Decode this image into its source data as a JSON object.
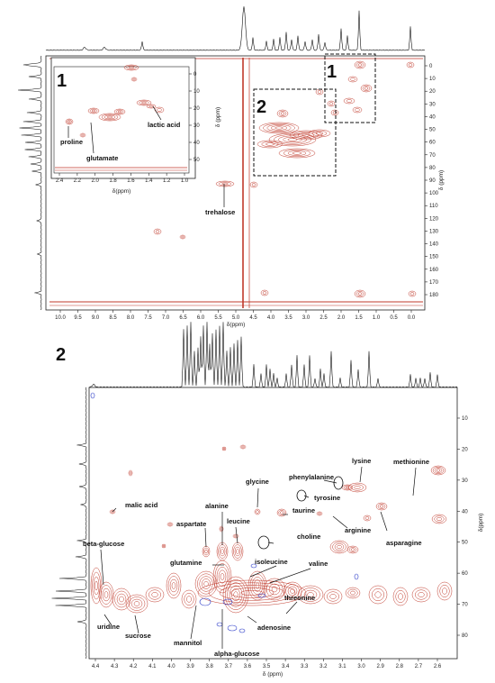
{
  "panel_top": {
    "x_axis_label": "δ(ppm)",
    "y_axis_label": "δ (ppm)",
    "x_ticks": [
      "10.0",
      "9.5",
      "9.0",
      "8.5",
      "8.0",
      "7.5",
      "7.0",
      "6.5",
      "6.0",
      "5.5",
      "5.0",
      "4.5",
      "4.0",
      "3.5",
      "3.0",
      "2.5",
      "2.0",
      "1.5",
      "1.0",
      "0.5",
      "0.0"
    ],
    "y_ticks": [
      "0",
      "10",
      "20",
      "30",
      "40",
      "50",
      "60",
      "70",
      "80",
      "90",
      "100",
      "110",
      "120",
      "130",
      "140",
      "150",
      "160",
      "170",
      "180"
    ],
    "box_labels": [
      "1",
      "2"
    ],
    "annotation": "trehalose",
    "inset": {
      "label": "1",
      "x_axis_label": "δ(ppm)",
      "y_axis_label": "δ (ppm)",
      "x_ticks": [
        "2.4",
        "2.2",
        "2.0",
        "1.8",
        "1.6",
        "1.4",
        "1.2",
        "1.0"
      ],
      "y_ticks": [
        "0",
        "10",
        "20",
        "30",
        "40",
        "50"
      ],
      "annotations": [
        "proline",
        "glutamate",
        "lactic acid"
      ]
    }
  },
  "panel_bottom": {
    "label": "2",
    "x_axis_label": "δ (ppm)",
    "y_axis_label": "δ(ppm)",
    "x_ticks": [
      "4.4",
      "4.3",
      "4.2",
      "4.1",
      "4.0",
      "3.9",
      "3.8",
      "3.7",
      "3.6",
      "3.5",
      "3.4",
      "3.3",
      "3.2",
      "3.1",
      "3.0",
      "2.9",
      "2.8",
      "2.7",
      "2.6"
    ],
    "y_ticks": [
      "10",
      "20",
      "30",
      "40",
      "50",
      "60",
      "70",
      "80"
    ],
    "annotations": [
      "methionine",
      "lysine",
      "phenylalanine",
      "glycine",
      "tyrosine",
      "malic acid",
      "alanine",
      "taurine",
      "arginine",
      "aspartate",
      "leucine",
      "asparagine",
      "beta-glucose",
      "choline",
      "glutamine",
      "isoleucine",
      "valine",
      "threonine",
      "uridine",
      "adenosine",
      "sucrose",
      "mannitol",
      "alpha-glucose"
    ]
  },
  "colors": {
    "contour": "#c0392b",
    "negative": "#2c3cc8",
    "axis": "#222222"
  }
}
